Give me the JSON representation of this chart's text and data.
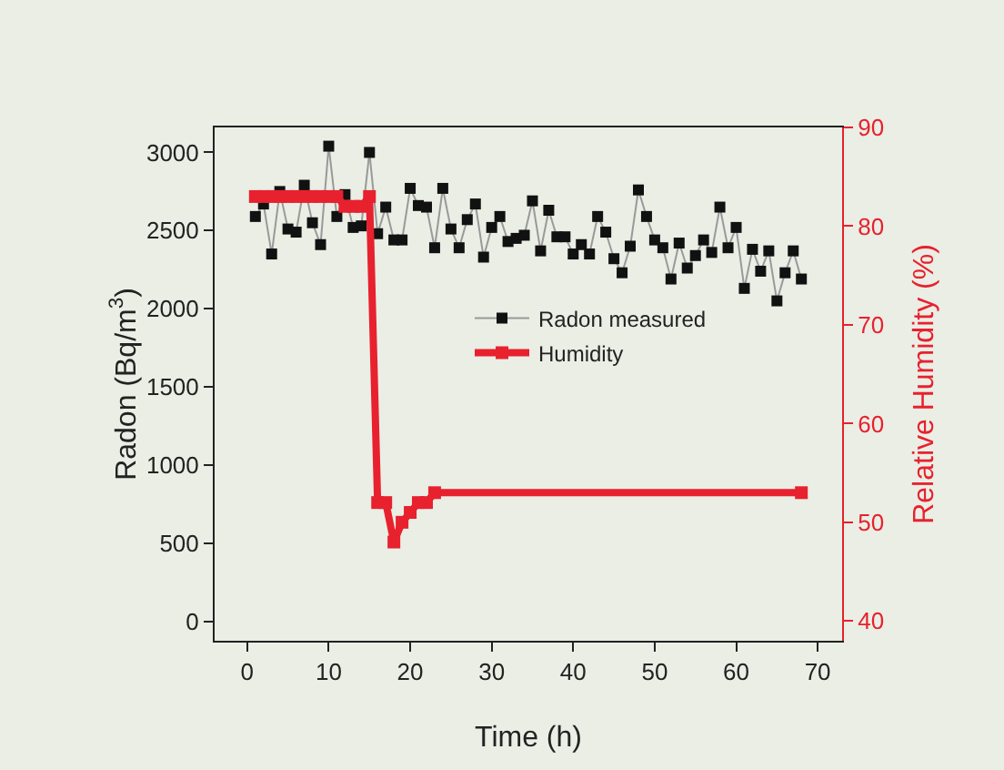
{
  "chart_data": {
    "type": "line",
    "xlabel": "Time (h)",
    "ylabel": "Radon (Bq/m$^{3}$)",
    "y2label": "Relative Humidity (%)",
    "xlim": [
      -4,
      73
    ],
    "xticks": [
      0,
      10,
      20,
      30,
      40,
      50,
      60,
      70
    ],
    "ylim": [
      -125,
      3160
    ],
    "yticks": [
      0,
      500,
      1000,
      1500,
      2000,
      2500,
      3000
    ],
    "y2lim": [
      38,
      90
    ],
    "y2ticks": [
      40,
      50,
      60,
      70,
      80,
      90
    ],
    "marker": "square",
    "legend": "right",
    "grid": false,
    "series": [
      {
        "name": "Radon measured",
        "color": "#111111",
        "x": [
          1,
          2,
          3,
          4,
          5,
          6,
          7,
          8,
          9,
          10,
          11,
          12,
          13,
          14,
          15,
          16,
          17,
          18,
          19,
          20,
          21,
          22,
          23,
          24,
          25,
          26,
          27,
          28,
          29,
          30,
          31,
          32,
          33,
          34,
          35,
          36,
          37,
          38,
          39,
          40,
          41,
          42,
          43,
          44,
          45,
          46,
          47,
          48,
          49,
          50,
          51,
          52,
          53,
          54,
          55,
          56,
          57,
          58,
          59,
          60,
          61,
          62,
          63,
          64,
          65,
          66,
          67,
          68
        ],
        "values": [
          2590,
          2670,
          2350,
          2750,
          2510,
          2490,
          2790,
          2550,
          2410,
          3040,
          2590,
          2730,
          2520,
          2530,
          3000,
          2480,
          2650,
          2440,
          2440,
          2770,
          2660,
          2650,
          2390,
          2770,
          2510,
          2390,
          2570,
          2670,
          2330,
          2520,
          2590,
          2430,
          2450,
          2470,
          2690,
          2370,
          2630,
          2460,
          2460,
          2350,
          2410,
          2350,
          2590,
          2490,
          2320,
          2230,
          2400,
          2760,
          2590,
          2440,
          2390,
          2190,
          2420,
          2260,
          2340,
          2440,
          2360,
          2650,
          2390,
          2520,
          2130,
          2380,
          2240,
          2370,
          2050,
          2230,
          2370,
          2190
        ]
      },
      {
        "name": "Humidity",
        "color": "#e8212e",
        "axis": "y2",
        "x": [
          1,
          2,
          3,
          4,
          5,
          6,
          7,
          8,
          9,
          10,
          11,
          12,
          13,
          14,
          15,
          16,
          17,
          18,
          19,
          20,
          21,
          22,
          23,
          68
        ],
        "values": [
          83,
          83,
          83,
          83,
          83,
          83,
          83,
          83,
          83,
          83,
          83,
          82,
          82,
          82,
          83,
          52,
          52,
          48,
          50,
          51,
          52,
          52,
          53,
          53
        ]
      }
    ]
  }
}
